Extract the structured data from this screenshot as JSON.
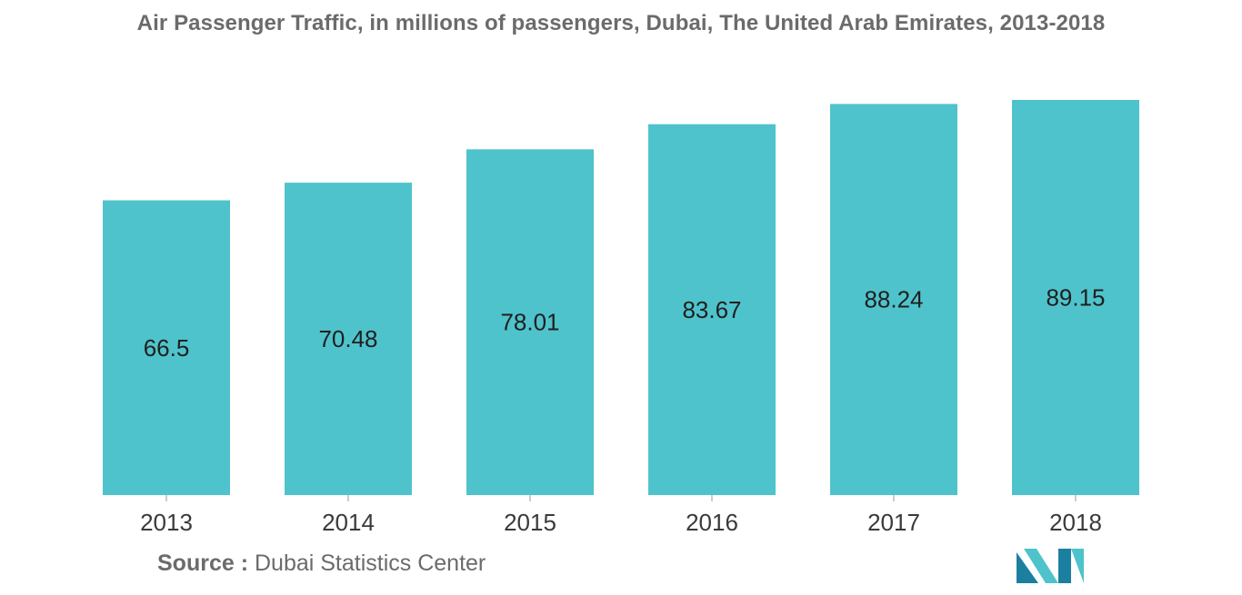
{
  "chart_data": {
    "type": "bar",
    "title": "Air Passenger Traffic, in millions of passengers, Dubai, The United Arab Emirates, 2013-2018",
    "categories": [
      "2013",
      "2014",
      "2015",
      "2016",
      "2017",
      "2018"
    ],
    "values": [
      66.5,
      70.48,
      78.01,
      83.67,
      88.24,
      89.15
    ],
    "value_labels": [
      "66.5",
      "70.48",
      "78.01",
      "83.67",
      "88.24",
      "89.15"
    ],
    "xlabel": "",
    "ylabel": "",
    "ylim": [
      0,
      89.15
    ],
    "grid": false,
    "legend": "none",
    "bar_color": "#4fc3cb"
  },
  "source": {
    "label": "Source :",
    "text": "Dubai Statistics Center"
  },
  "colors": {
    "title": "#6b6b6b",
    "axis_text": "#3a3a3a",
    "value_text": "#1f1f1f",
    "logo_dark": "#1b7fa0",
    "logo_light": "#4fc3cb"
  }
}
